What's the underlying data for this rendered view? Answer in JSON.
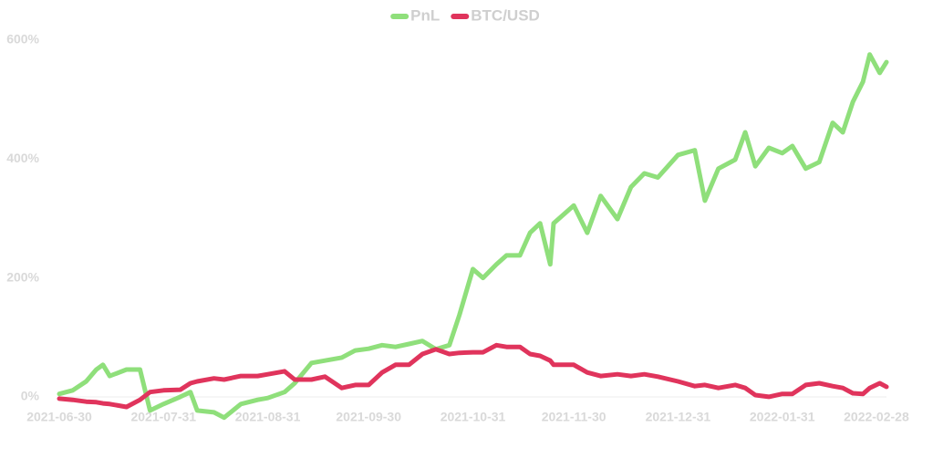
{
  "chart_data": {
    "type": "line",
    "x": [
      "2021-06-30",
      "2021-07-04",
      "2021-07-08",
      "2021-07-11",
      "2021-07-13",
      "2021-07-15",
      "2021-07-20",
      "2021-07-24",
      "2021-07-27",
      "2021-07-31",
      "2021-08-05",
      "2021-08-08",
      "2021-08-10",
      "2021-08-15",
      "2021-08-18",
      "2021-08-23",
      "2021-08-28",
      "2021-08-31",
      "2021-09-05",
      "2021-09-08",
      "2021-09-13",
      "2021-09-17",
      "2021-09-22",
      "2021-09-26",
      "2021-09-30",
      "2021-10-04",
      "2021-10-08",
      "2021-10-12",
      "2021-10-16",
      "2021-10-20",
      "2021-10-24",
      "2021-10-27",
      "2021-10-31",
      "2021-11-03",
      "2021-11-07",
      "2021-11-10",
      "2021-11-14",
      "2021-11-17",
      "2021-11-20",
      "2021-11-23",
      "2021-11-24",
      "2021-11-30",
      "2021-12-04",
      "2021-12-08",
      "2021-12-13",
      "2021-12-17",
      "2021-12-21",
      "2021-12-25",
      "2021-12-31",
      "2022-01-05",
      "2022-01-08",
      "2022-01-12",
      "2022-01-17",
      "2022-01-20",
      "2022-01-23",
      "2022-01-27",
      "2022-01-31",
      "2022-02-03",
      "2022-02-07",
      "2022-02-11",
      "2022-02-15",
      "2022-02-18",
      "2022-02-21",
      "2022-02-24",
      "2022-02-26",
      "2022-03-01",
      "2022-03-03"
    ],
    "series": [
      {
        "name": "PnL",
        "color": "#8fdf7b",
        "values": [
          5,
          11,
          26,
          46,
          54,
          35,
          46,
          46,
          -23,
          -12,
          0,
          8,
          -23,
          -26,
          -35,
          -12,
          -5,
          -2,
          8,
          23,
          57,
          61,
          66,
          78,
          81,
          87,
          84,
          89,
          94,
          80,
          87,
          138,
          215,
          200,
          223,
          238,
          238,
          276,
          292,
          223,
          292,
          322,
          276,
          338,
          299,
          353,
          376,
          369,
          407,
          415,
          330,
          384,
          399,
          445,
          388,
          419,
          410,
          422,
          384,
          395,
          461,
          445,
          496,
          530,
          576,
          545,
          563
        ]
      },
      {
        "name": "BTC/USD",
        "color": "#e0345c",
        "values": [
          -3,
          -5,
          -8,
          -9,
          -11,
          -12,
          -17,
          -5,
          8,
          11,
          12,
          23,
          26,
          31,
          29,
          35,
          35,
          38,
          43,
          29,
          29,
          34,
          15,
          20,
          20,
          41,
          54,
          54,
          72,
          80,
          72,
          74,
          75,
          75,
          87,
          84,
          84,
          72,
          69,
          61,
          54,
          54,
          41,
          35,
          38,
          35,
          38,
          34,
          26,
          18,
          20,
          15,
          20,
          15,
          3,
          0,
          5,
          5,
          20,
          23,
          18,
          15,
          6,
          5,
          15,
          23,
          17
        ]
      }
    ],
    "xlim": [
      "2021-06-30",
      "2022-03-03"
    ],
    "xticks": [
      "2021-06-30",
      "2021-07-31",
      "2021-08-31",
      "2021-09-30",
      "2021-10-31",
      "2021-11-30",
      "2021-12-31",
      "2022-01-31",
      "2022-02-28"
    ],
    "ylim": [
      -40,
      620
    ],
    "yticks": [
      {
        "value": 0,
        "label": "0%"
      },
      {
        "value": 200,
        "label": "200%"
      },
      {
        "value": 400,
        "label": "400%"
      },
      {
        "value": 600,
        "label": "600%"
      }
    ],
    "legend": "top"
  }
}
